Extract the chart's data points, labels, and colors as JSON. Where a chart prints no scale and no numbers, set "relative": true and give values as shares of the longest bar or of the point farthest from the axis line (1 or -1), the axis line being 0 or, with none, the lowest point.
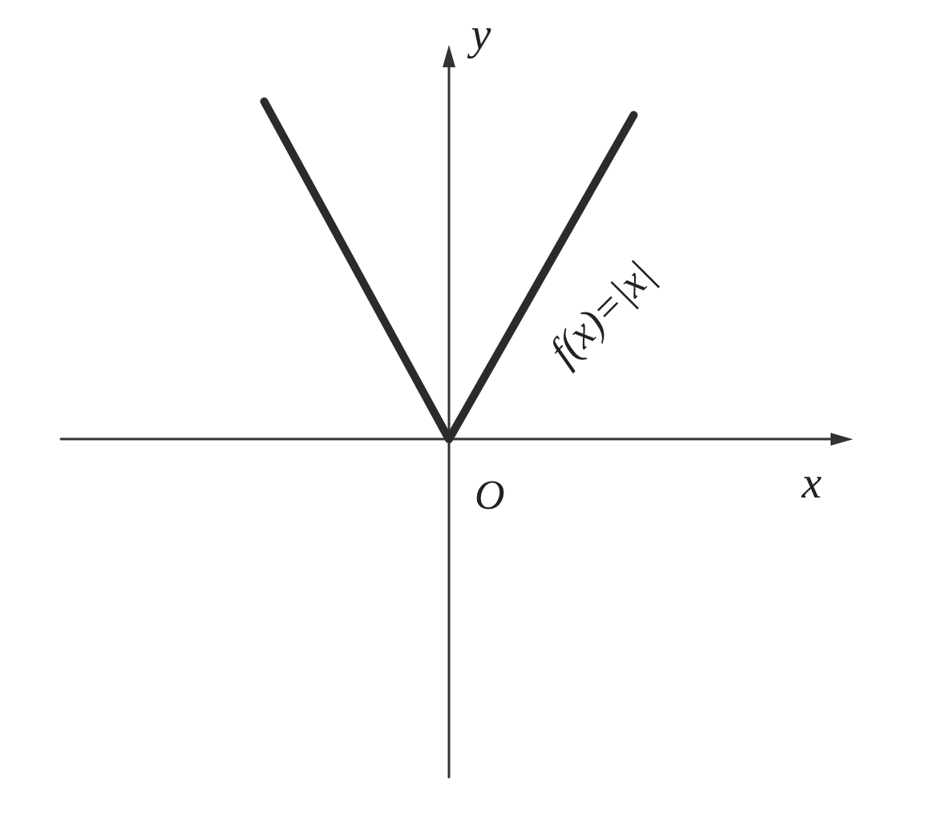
{
  "chart_data": {
    "type": "line",
    "relative": true,
    "xlabel": "x",
    "ylabel": "y",
    "categories": [
      null,
      null,
      null
    ],
    "series": [
      {
        "color": "#2b2b2b",
        "values": [
          1,
          0,
          0.96
        ]
      }
    ],
    "annotations": [
      "f(x)=|x|",
      "O"
    ],
    "grid": false
  }
}
